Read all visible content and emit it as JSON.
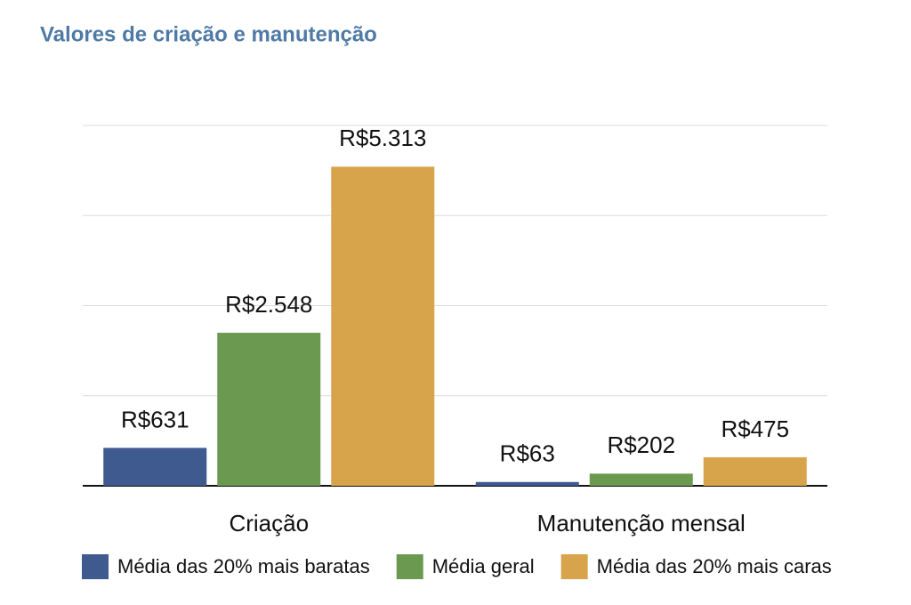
{
  "chart_data": {
    "type": "bar",
    "title": "Valores de criação e manutenção",
    "categories": [
      "Criação",
      "Manutenção mensal"
    ],
    "series": [
      {
        "name": "Média das 20% mais baratas",
        "color": "#3e5a8e",
        "values": [
          631,
          63
        ],
        "value_labels": [
          "R$631",
          "R$63"
        ]
      },
      {
        "name": "Média geral",
        "color": "#6b994f",
        "values": [
          2548,
          202
        ],
        "value_labels": [
          "R$2.548",
          "R$202"
        ]
      },
      {
        "name": "Média das 20% mais caras",
        "color": "#d8a44b",
        "values": [
          5313,
          475
        ],
        "value_labels": [
          "R$5.313",
          "R$475"
        ]
      }
    ],
    "ylim": [
      0,
      6000
    ],
    "yticks": [
      0,
      1500,
      3000,
      4500,
      6000
    ],
    "grid": true
  }
}
